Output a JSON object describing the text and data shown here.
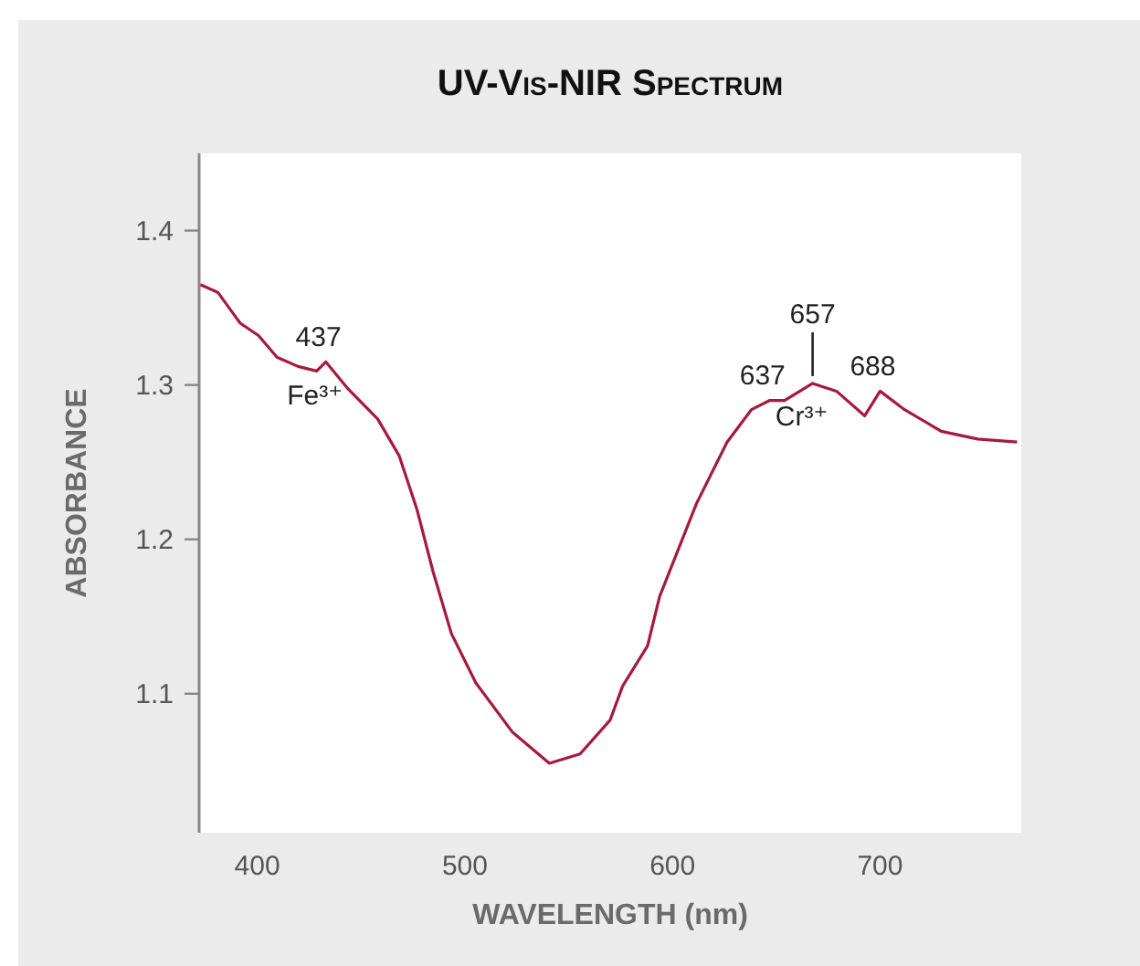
{
  "chart_data": {
    "type": "line",
    "title": "UV-Vis-NIR Spectrum",
    "xlabel": "WAVELENGTH (nm)",
    "ylabel": "ABSORBANCE",
    "xlim": [
      372,
      768
    ],
    "ylim": [
      1.01,
      1.45
    ],
    "xticks": [
      400,
      500,
      600,
      700
    ],
    "yticks": [
      1.1,
      1.2,
      1.3,
      1.4
    ],
    "grid": false,
    "marker": "none",
    "line_style": "solid",
    "series": [
      {
        "color": "#a61a3c",
        "x": [
          372.6,
          381,
          391.8,
          400.6,
          409.5,
          419.7,
          428.6,
          433,
          443.4,
          458,
          468.4,
          477,
          484.7,
          493.5,
          505.3,
          523,
          540.7,
          555.5,
          570,
          576,
          588,
          593.8,
          611.5,
          626.3,
          638,
          646.9,
          654,
          667.5,
          679,
          692.6,
          700,
          711.8,
          729.5,
          747,
          766
        ],
        "values": [
          1.365,
          1.36,
          1.34,
          1.332,
          1.318,
          1.312,
          1.309,
          1.315,
          1.298,
          1.278,
          1.254,
          1.219,
          1.179,
          1.139,
          1.107,
          1.075,
          1.055,
          1.061,
          1.083,
          1.105,
          1.131,
          1.163,
          1.223,
          1.263,
          1.284,
          1.29,
          1.29,
          1.301,
          1.296,
          1.28,
          1.296,
          1.284,
          1.27,
          1.265,
          1.263
        ]
      }
    ],
    "annotations": [
      {
        "text": "437",
        "x": 433,
        "y": 1.315
      },
      {
        "text": "Fe³⁺",
        "x": 433,
        "y": 1.315
      },
      {
        "text": "637",
        "x": 646.9,
        "y": 1.29
      },
      {
        "text": "657",
        "x": 667.5,
        "y": 1.301
      },
      {
        "text": "Cr³⁺",
        "x": 667.5,
        "y": 1.301
      },
      {
        "text": "688",
        "x": 700,
        "y": 1.296
      }
    ]
  }
}
